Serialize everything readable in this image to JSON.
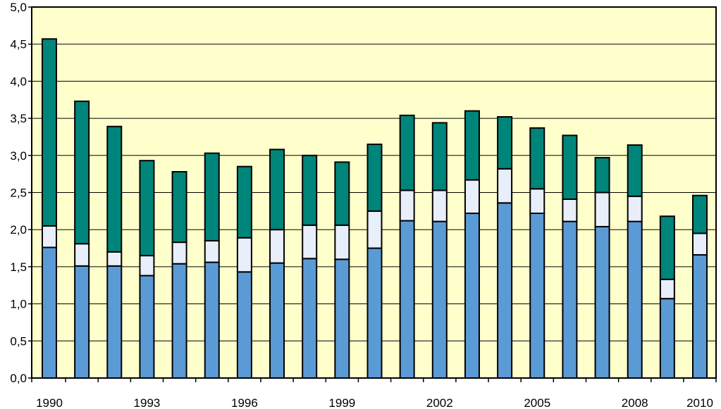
{
  "chart_data": {
    "type": "bar",
    "stacked": true,
    "x": [
      1990,
      1991,
      1992,
      1993,
      1994,
      1995,
      1996,
      1997,
      1998,
      1999,
      2000,
      2001,
      2002,
      2003,
      2004,
      2005,
      2006,
      2007,
      2008,
      2009,
      2010
    ],
    "x_tick_labels": [
      "1990",
      "1993",
      "1996",
      "1999",
      "2002",
      "2005",
      "2008",
      "2010"
    ],
    "y_tick_labels": [
      "0,0",
      "0,5",
      "1,0",
      "1,5",
      "2,0",
      "2,5",
      "3,0",
      "3,5",
      "4,0",
      "4,5",
      "5,0"
    ],
    "ylim": [
      0,
      5
    ],
    "y_step": 0.5,
    "grid": true,
    "legend": "none",
    "series": [
      {
        "color": "#5b9bd5",
        "values": [
          1.76,
          1.51,
          1.51,
          1.38,
          1.54,
          1.56,
          1.43,
          1.55,
          1.61,
          1.6,
          1.75,
          2.12,
          2.11,
          2.22,
          2.36,
          2.22,
          2.11,
          2.04,
          2.11,
          1.07,
          1.66
        ]
      },
      {
        "color": "#e8eefa",
        "values": [
          0.29,
          0.3,
          0.19,
          0.27,
          0.29,
          0.29,
          0.46,
          0.45,
          0.45,
          0.46,
          0.5,
          0.41,
          0.42,
          0.45,
          0.46,
          0.33,
          0.3,
          0.46,
          0.34,
          0.26,
          0.29
        ]
      },
      {
        "color": "#00857b",
        "values": [
          2.52,
          1.92,
          1.69,
          1.28,
          0.95,
          1.18,
          0.96,
          1.08,
          0.94,
          0.85,
          0.9,
          1.01,
          0.91,
          0.93,
          0.7,
          0.82,
          0.86,
          0.47,
          0.69,
          0.85,
          0.51
        ]
      }
    ]
  },
  "colors": {
    "plot_background": "#ffffcc",
    "gridline": "#000000",
    "bar_outline": "#000000"
  }
}
